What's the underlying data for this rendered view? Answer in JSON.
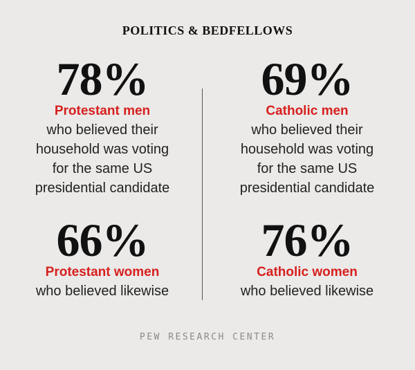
{
  "title": "POLITICS & BEDFELLOWS",
  "stats": [
    {
      "value": "78%",
      "label": "Protestant men",
      "description_lines": [
        "who believed their",
        "household was voting",
        "for the same US",
        "presidential candidate"
      ]
    },
    {
      "value": "69%",
      "label": "Catholic men",
      "description_lines": [
        "who believed their",
        "household was voting",
        "for the same US",
        "presidential candidate"
      ]
    },
    {
      "value": "66%",
      "label": "Protestant women",
      "description_lines": [
        "who believed likewise"
      ]
    },
    {
      "value": "76%",
      "label": "Catholic women",
      "description_lines": [
        "who believed likewise"
      ]
    }
  ],
  "source": "PEW RESEARCH CENTER",
  "colors": {
    "background": "#ebeae8",
    "accent": "#d6201f",
    "text": "#1a1a1a",
    "source": "#8a8a8a"
  }
}
